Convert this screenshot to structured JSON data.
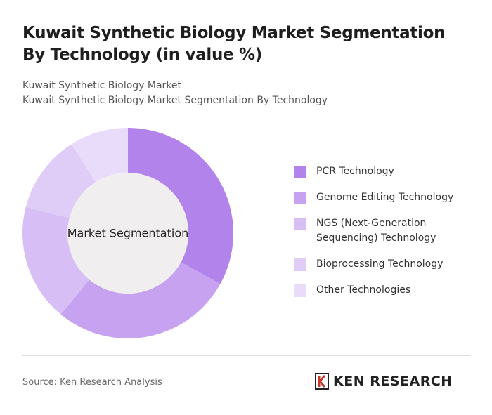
{
  "chart_data": {
    "type": "donut",
    "title": "Kuwait Synthetic Biology Market Segmentation By Technology (in value %)",
    "subtitle": [
      "Kuwait Synthetic Biology Market",
      "Kuwait Synthetic Biology Market Segmentation By Technology"
    ],
    "center_label": "Market Segmentation",
    "categories": [
      "PCR Technology",
      "Genome Editing Technology",
      "NGS (Next-Generation Sequencing) Technology",
      "Bioprocessing Technology",
      "Other Technologies"
    ],
    "values": [
      33,
      28,
      18,
      12,
      9
    ],
    "colors": [
      "#b283ea",
      "#c6a2f1",
      "#d7bff5",
      "#dfccf7",
      "#e9dcfa"
    ],
    "source": "Source: Ken Research Analysis",
    "logo": "KEN RESEARCH"
  }
}
